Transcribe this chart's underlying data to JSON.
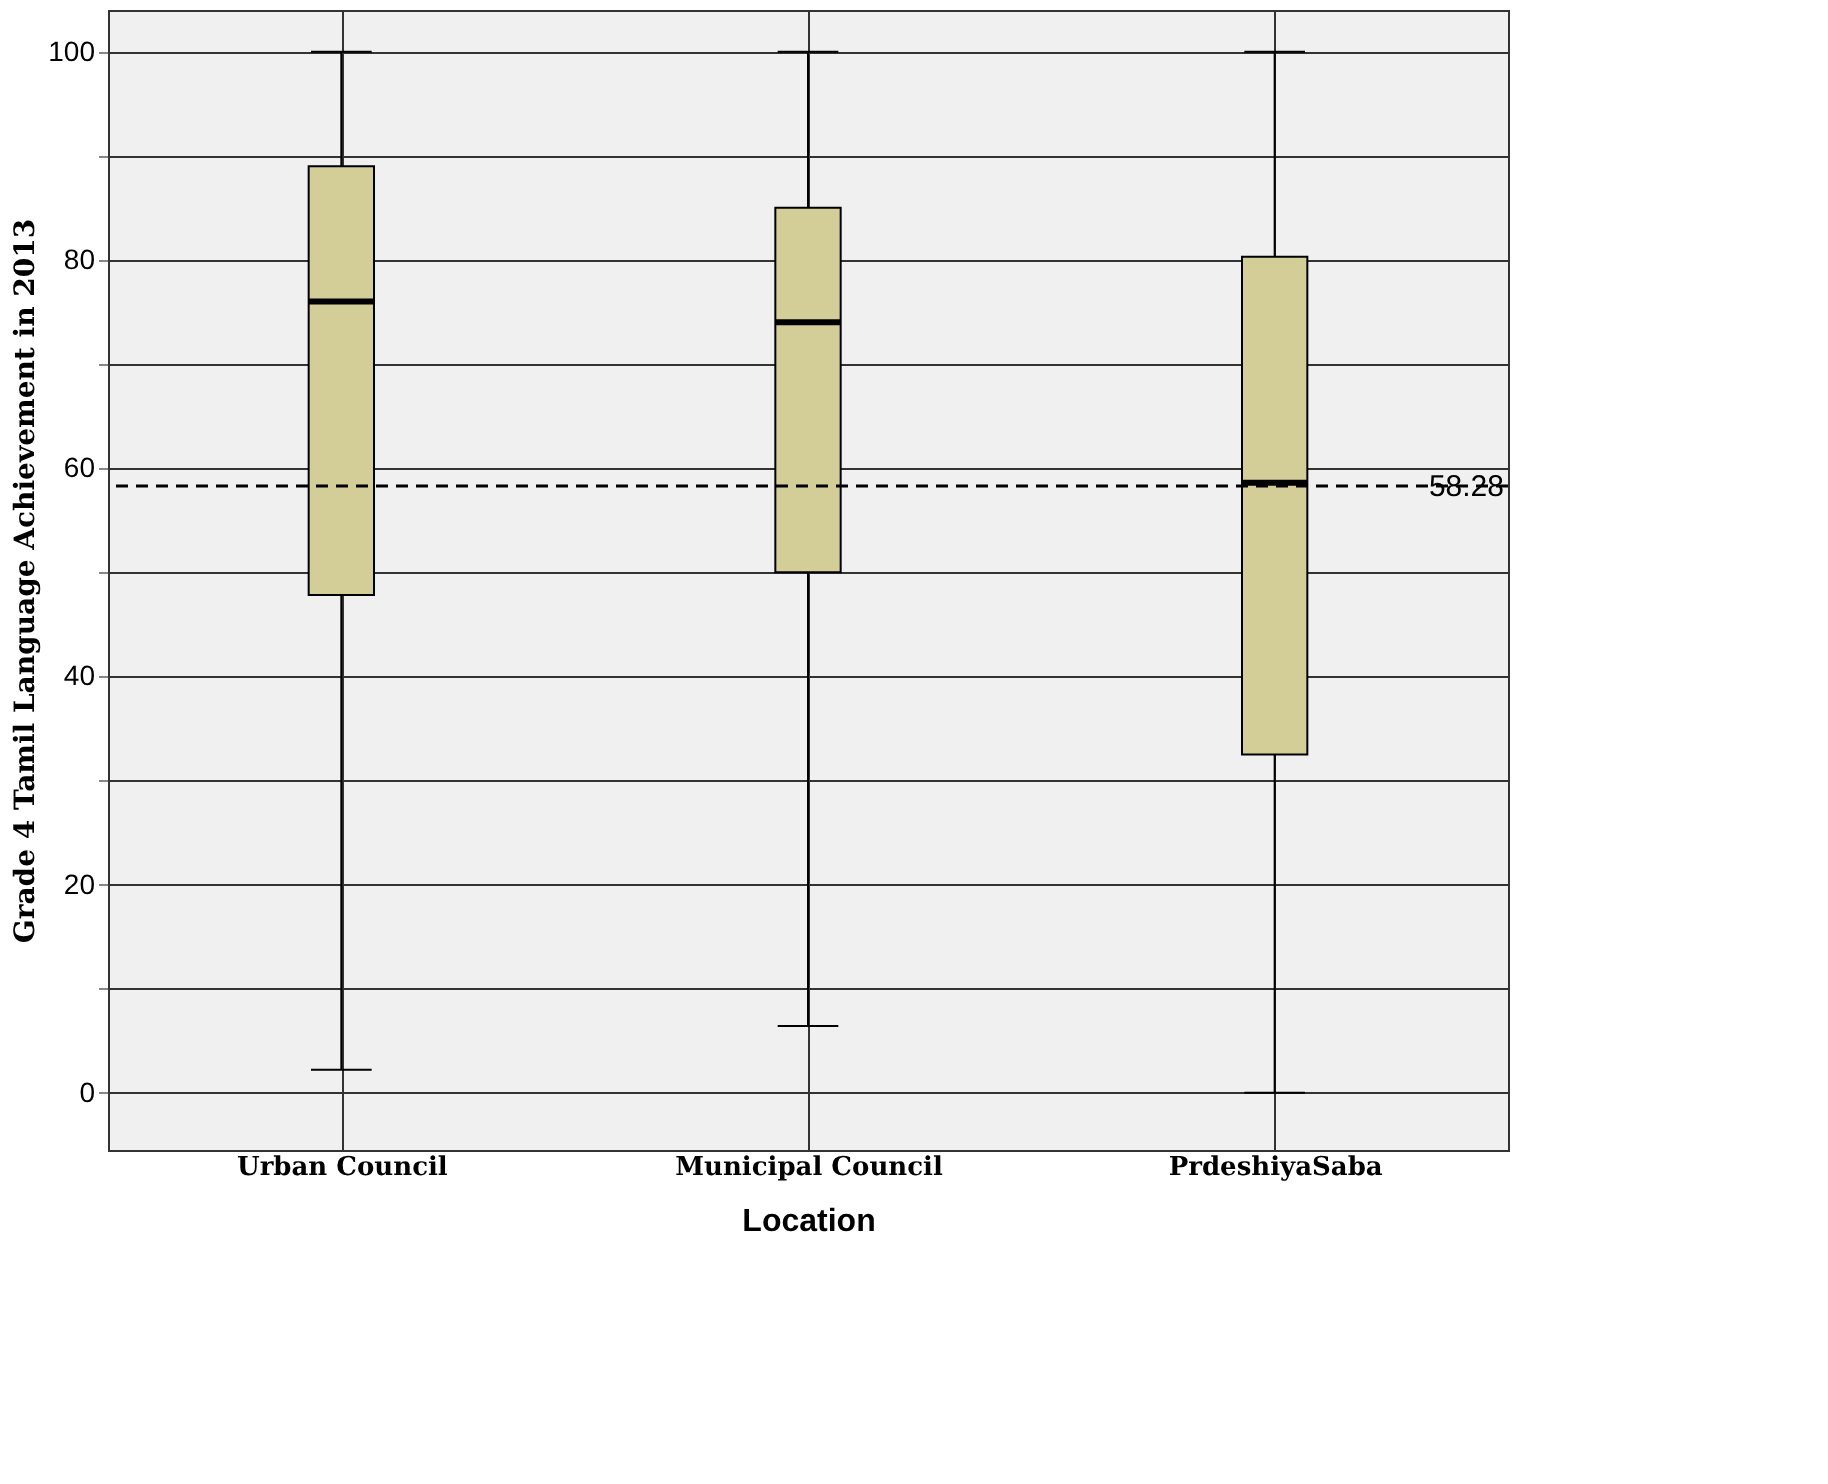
{
  "chart_data": {
    "type": "box",
    "xlabel": "Location",
    "ylabel": "Grade 4 Tamil Language Achievement in 2013",
    "categories": [
      "Urban Council",
      "Municipal Council",
      "PrdeshiyaSaba"
    ],
    "boxes": [
      {
        "low": 2.2,
        "q1": 47.8,
        "median": 76,
        "q3": 89,
        "high": 100
      },
      {
        "low": 6.4,
        "q1": 50,
        "median": 74,
        "q3": 85,
        "high": 100
      },
      {
        "low": 0,
        "q1": 32.5,
        "median": 58.6,
        "q3": 80.3,
        "high": 100
      }
    ],
    "color": "#d3ce97",
    "ylim": [
      -5.5,
      104
    ],
    "yticks": [
      0,
      {
        "value": 10,
        "label": null
      },
      20,
      {
        "value": 30,
        "label": null
      },
      40,
      {
        "value": 50,
        "label": null
      },
      60,
      {
        "value": 70,
        "label": null
      },
      80,
      {
        "value": 90,
        "label": null
      },
      100
    ],
    "ref_lines": [
      {
        "axis": "y",
        "value": 58.28,
        "label": "58.28",
        "line_style": "dashed"
      }
    ],
    "grid": true
  }
}
